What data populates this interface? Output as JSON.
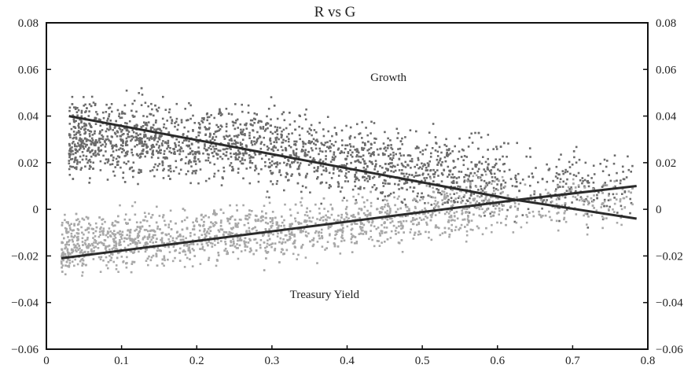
{
  "chart_data": {
    "type": "scatter",
    "title": "R vs G",
    "xlabel": "",
    "ylabel": "",
    "xlim": [
      0,
      0.8
    ],
    "ylim": [
      -0.06,
      0.08
    ],
    "x_ticks": [
      "0",
      "0.1",
      "0.2",
      "0.3",
      "0.4",
      "0.5",
      "0.6",
      "0.7",
      "0.8"
    ],
    "y_ticks_left": [
      "0.08",
      "0.06",
      "0.04",
      "0.02",
      "0",
      "−0.02",
      "−0.04",
      "−0.06"
    ],
    "y_ticks_right": [
      "0.08",
      "0.06",
      "0.04",
      "0.02",
      "0",
      "−0.02",
      "−0.04",
      "−0.06"
    ],
    "grid": false,
    "annotations": [
      {
        "text": "Growth",
        "x": 0.455,
        "y": 0.055
      },
      {
        "text": "Treasury Yield",
        "x": 0.37,
        "y": -0.038
      }
    ],
    "series": [
      {
        "color": "#6b6b6b",
        "point_cloud": {
          "x_range": [
            0.03,
            0.78
          ],
          "centerline": [
            [
              0.03,
              0.031
            ],
            [
              0.3,
              0.027
            ],
            [
              0.5,
              0.017
            ],
            [
              0.62,
              0.011
            ],
            [
              0.78,
              0.009
            ]
          ],
          "spread": 0.011
        },
        "trend_line": [
          [
            0.03,
            0.04
          ],
          [
            0.625,
            0.004
          ],
          [
            0.785,
            -0.004
          ]
        ]
      },
      {
        "color": "#a8a8a8",
        "point_cloud": {
          "x_range": [
            0.02,
            0.78
          ],
          "centerline": [
            [
              0.02,
              -0.015
            ],
            [
              0.3,
              -0.01
            ],
            [
              0.5,
              -0.002
            ],
            [
              0.62,
              0.002
            ],
            [
              0.78,
              0.002
            ]
          ],
          "spread": 0.008
        },
        "trend_line": [
          [
            0.02,
            -0.021
          ],
          [
            0.625,
            0.004
          ],
          [
            0.785,
            0.01
          ]
        ]
      }
    ]
  }
}
